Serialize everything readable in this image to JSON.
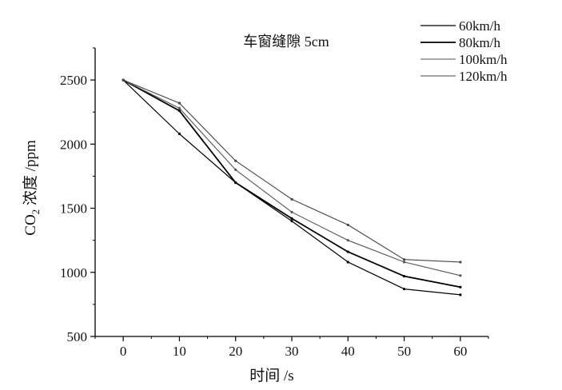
{
  "chart_data": {
    "type": "line",
    "title": "车窗缝隙 5cm",
    "xlabel": "时间 /s",
    "ylabel_main": "CO",
    "ylabel_sub": "2",
    "ylabel_rest": " 浓度 /ppm",
    "x": [
      0,
      10,
      20,
      30,
      40,
      50,
      60
    ],
    "xticks": [
      "0",
      "10",
      "20",
      "30",
      "40",
      "50",
      "60"
    ],
    "yticks": [
      "500",
      "1000",
      "1500",
      "2000",
      "2500"
    ],
    "xlim": [
      -5,
      65
    ],
    "ylim": [
      500,
      2750
    ],
    "grid": false,
    "legend_position": "top-right",
    "series": [
      {
        "name": "60km/h",
        "color": "#000000",
        "width": 1.2,
        "values": [
          2500,
          2080,
          1700,
          1400,
          1080,
          870,
          825
        ]
      },
      {
        "name": "80km/h",
        "color": "#000000",
        "width": 1.8,
        "values": [
          2500,
          2260,
          1700,
          1420,
          1160,
          970,
          885
        ]
      },
      {
        "name": "100km/h",
        "color": "#555555",
        "width": 1.1,
        "values": [
          2500,
          2280,
          1800,
          1470,
          1250,
          1080,
          975
        ]
      },
      {
        "name": "120km/h",
        "color": "#444444",
        "width": 1.1,
        "values": [
          2500,
          2320,
          1870,
          1570,
          1370,
          1100,
          1080
        ]
      }
    ]
  }
}
